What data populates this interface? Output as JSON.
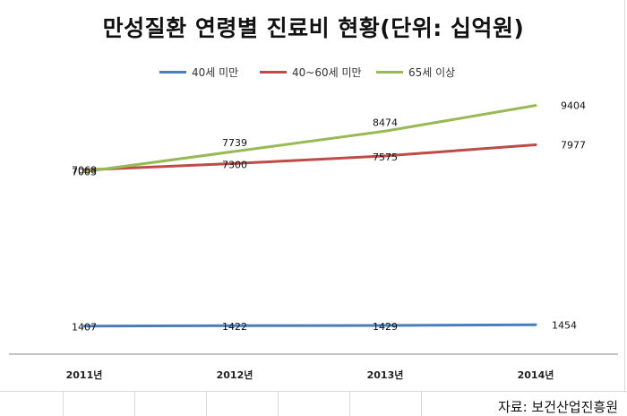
{
  "title": "만성질환 연령별 진료비 현황(단위: 십억원)",
  "source": "자료: 보건산업진흥원",
  "chart_data": {
    "type": "line",
    "title": "만성질환 연령별 진료비 현황(단위: 십억원)",
    "xlabel": "",
    "ylabel": "",
    "categories": [
      "2011년",
      "2012년",
      "2013년",
      "2014년"
    ],
    "ylim": [
      0,
      10000
    ],
    "grid": false,
    "legend": "top",
    "series": [
      {
        "name": "40세 미만",
        "color": "#4a7ebb",
        "values": [
          1407,
          1422,
          1429,
          1454
        ]
      },
      {
        "name": "40~60세 미만",
        "color": "#be4b48",
        "values": [
          7068,
          7300,
          7575,
          7977
        ]
      },
      {
        "name": "65세 이상",
        "color": "#98b954",
        "values": [
          7003,
          7739,
          8474,
          9404
        ]
      }
    ],
    "data_labels": [
      [
        "1407",
        "1422",
        "1429",
        "1454"
      ],
      [
        "7068",
        "7300",
        "7575",
        "7977"
      ],
      [
        "7003",
        "7739",
        "8474",
        "9404"
      ]
    ]
  }
}
